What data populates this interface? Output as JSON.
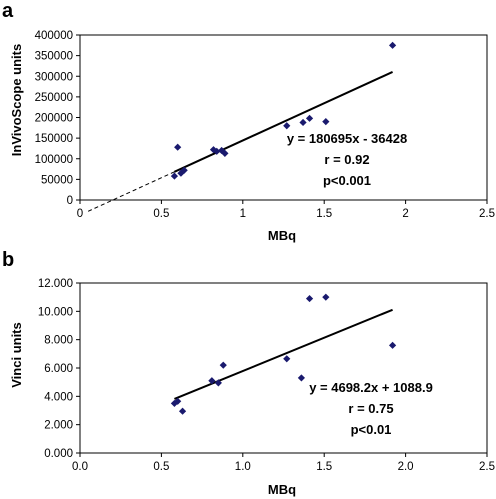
{
  "chart_data": [
    {
      "panel": "a",
      "type": "scatter",
      "xlabel": "MBq",
      "ylabel": "InVivoScope units",
      "xlim": [
        0,
        2.5
      ],
      "ylim": [
        0,
        400000
      ],
      "xticks": [
        "0",
        "0.5",
        "1",
        "1.5",
        "2",
        "2.5"
      ],
      "yticks": [
        "0",
        "50000",
        "100000",
        "150000",
        "200000",
        "250000",
        "300000",
        "350000",
        "400000"
      ],
      "grid": false,
      "marker_color": "#1a1a6e",
      "points": [
        {
          "x": 0.58,
          "y": 58000
        },
        {
          "x": 0.6,
          "y": 128000
        },
        {
          "x": 0.62,
          "y": 65000
        },
        {
          "x": 0.64,
          "y": 72000
        },
        {
          "x": 0.82,
          "y": 122000
        },
        {
          "x": 0.84,
          "y": 118000
        },
        {
          "x": 0.87,
          "y": 120000
        },
        {
          "x": 0.89,
          "y": 113000
        },
        {
          "x": 1.27,
          "y": 180000
        },
        {
          "x": 1.37,
          "y": 188000
        },
        {
          "x": 1.41,
          "y": 198000
        },
        {
          "x": 1.51,
          "y": 190000
        },
        {
          "x": 1.92,
          "y": 375000
        }
      ],
      "fit": {
        "slope": 180695,
        "intercept": -36428,
        "x_solid": [
          0.58,
          1.92
        ],
        "x_dashed": [
          0.05,
          0.58
        ]
      },
      "annotations": [
        "y = 180695x  - 36428",
        "r = 0.92",
        "p<0.001"
      ]
    },
    {
      "panel": "b",
      "type": "scatter",
      "xlabel": "MBq",
      "ylabel": "Vinci units",
      "xlim": [
        0,
        2.5
      ],
      "ylim": [
        0,
        12000
      ],
      "xticks": [
        "0.0",
        "0.5",
        "1.0",
        "1.5",
        "2.0",
        "2.5"
      ],
      "yticks": [
        "0.000",
        "2.000",
        "4.000",
        "6.000",
        "8.000",
        "10.000",
        "12.000"
      ],
      "grid": false,
      "marker_color": "#1a1a6e",
      "points": [
        {
          "x": 0.58,
          "y": 3500
        },
        {
          "x": 0.6,
          "y": 3650
        },
        {
          "x": 0.63,
          "y": 2950
        },
        {
          "x": 0.81,
          "y": 5100
        },
        {
          "x": 0.85,
          "y": 4950
        },
        {
          "x": 0.88,
          "y": 6200
        },
        {
          "x": 1.27,
          "y": 6650
        },
        {
          "x": 1.36,
          "y": 5300
        },
        {
          "x": 1.41,
          "y": 10900
        },
        {
          "x": 1.51,
          "y": 11000
        },
        {
          "x": 1.92,
          "y": 7600
        }
      ],
      "fit": {
        "slope": 4698.2,
        "intercept": 1088.9,
        "x_solid": [
          0.58,
          1.92
        ]
      },
      "annotations": [
        "y = 4698.2x + 1088.9",
        "r = 0.75",
        "p<0.01"
      ]
    }
  ]
}
